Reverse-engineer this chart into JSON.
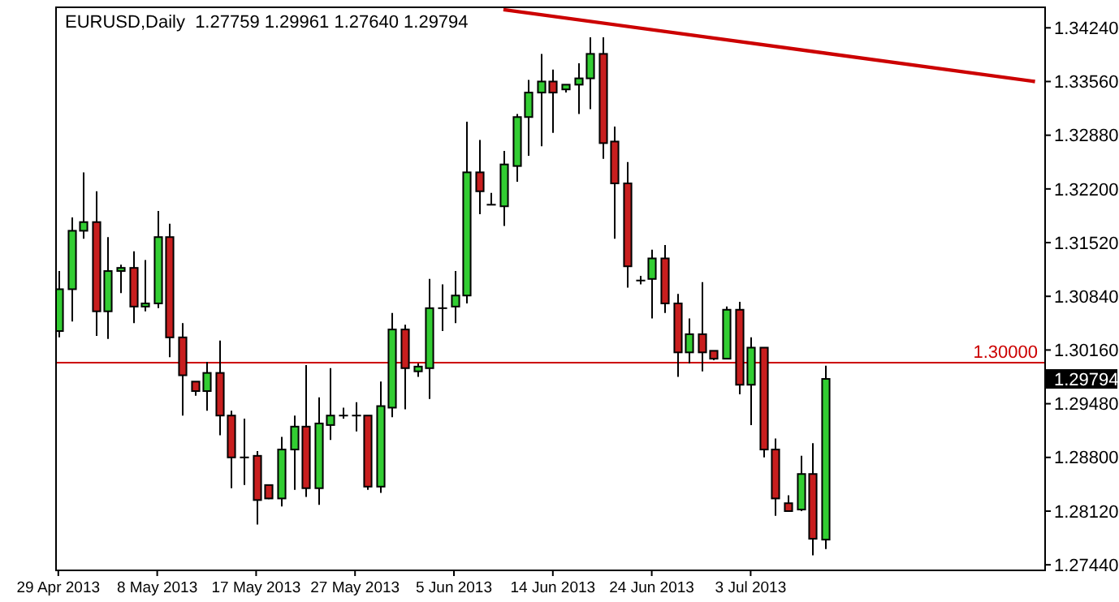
{
  "chart_data": {
    "type": "candlestick",
    "title": "EURUSD,Daily  1.27759 1.29961 1.27640 1.29794",
    "categories": [
      "29 Apr 2013",
      null,
      null,
      null,
      null,
      null,
      null,
      null,
      "8 May 2013",
      null,
      null,
      null,
      null,
      null,
      null,
      null,
      "17 May 2013",
      null,
      null,
      null,
      null,
      null,
      null,
      null,
      "27 May 2013",
      null,
      null,
      null,
      null,
      null,
      null,
      null,
      "5 Jun 2013",
      null,
      null,
      null,
      null,
      null,
      null,
      null,
      "14 Jun 2013",
      null,
      null,
      null,
      null,
      null,
      null,
      null,
      "24 Jun 2013",
      null,
      null,
      null,
      null,
      null,
      null,
      null,
      "3 Jul 2013",
      null,
      null,
      null,
      null,
      null,
      null,
      null,
      null,
      null,
      null,
      null,
      null,
      null,
      null,
      null,
      null,
      null,
      null,
      null,
      null,
      null,
      null,
      null
    ],
    "ohlc": [
      [
        1.304,
        1.3116,
        1.3032,
        1.3093
      ],
      [
        1.3093,
        1.3184,
        1.3052,
        1.3167
      ],
      [
        1.3167,
        1.3241,
        1.3157,
        1.3178
      ],
      [
        1.3178,
        1.3217,
        1.3034,
        1.3065
      ],
      [
        1.3065,
        1.3159,
        1.303,
        1.3116
      ],
      [
        1.3116,
        1.3124,
        1.3088,
        1.312
      ],
      [
        1.312,
        1.3141,
        1.305,
        1.3071
      ],
      [
        1.3071,
        1.313,
        1.3065,
        1.3075
      ],
      [
        1.3075,
        1.3192,
        1.3069,
        1.3159
      ],
      [
        1.3159,
        1.3176,
        1.3007,
        1.3032
      ],
      [
        1.3032,
        1.305,
        1.2933,
        1.2984
      ],
      [
        1.2976,
        1.2976,
        1.2958,
        1.2964
      ],
      [
        1.2964,
        1.3001,
        1.2939,
        1.2987
      ],
      [
        1.2987,
        1.3028,
        1.2908,
        1.2933
      ],
      [
        1.2933,
        1.2939,
        1.2841,
        1.288
      ],
      [
        1.288,
        1.2929,
        1.2845,
        1.288
      ],
      [
        1.2882,
        1.2888,
        1.2795,
        1.2826
      ],
      [
        1.2845,
        1.2845,
        1.2827,
        1.2828
      ],
      [
        1.2828,
        1.2906,
        1.2818,
        1.289
      ],
      [
        1.289,
        1.2933,
        1.2839,
        1.2919
      ],
      [
        1.2919,
        1.2997,
        1.283,
        1.2841
      ],
      [
        1.2841,
        1.2956,
        1.282,
        1.2923
      ],
      [
        1.2921,
        1.2993,
        1.2902,
        1.2933
      ],
      [
        1.2933,
        1.2943,
        1.2929,
        1.2933
      ],
      [
        1.2933,
        1.295,
        1.2913,
        1.2933
      ],
      [
        1.2933,
        1.2933,
        1.2839,
        1.2843
      ],
      [
        1.2843,
        1.2976,
        1.2835,
        1.2945
      ],
      [
        1.2943,
        1.3063,
        1.2931,
        1.3042
      ],
      [
        1.3042,
        1.3048,
        1.2941,
        1.2993
      ],
      [
        1.2989,
        1.2999,
        1.2982,
        1.2995
      ],
      [
        1.2993,
        1.3106,
        1.2954,
        1.3069
      ],
      [
        1.3069,
        1.3099,
        1.304,
        1.3069
      ],
      [
        1.3071,
        1.3116,
        1.305,
        1.3085
      ],
      [
        1.3085,
        1.3305,
        1.3075,
        1.3241
      ],
      [
        1.3241,
        1.3282,
        1.3188,
        1.3217
      ],
      [
        1.32,
        1.3215,
        1.32,
        1.32
      ],
      [
        1.3198,
        1.3268,
        1.3173,
        1.3251
      ],
      [
        1.3249,
        1.3315,
        1.3229,
        1.3311
      ],
      [
        1.3311,
        1.3358,
        1.3262,
        1.3342
      ],
      [
        1.3342,
        1.3391,
        1.3274,
        1.3356
      ],
      [
        1.3356,
        1.3371,
        1.3291,
        1.3342
      ],
      [
        1.3346,
        1.3352,
        1.3342,
        1.3352
      ],
      [
        1.3352,
        1.3379,
        1.3315,
        1.336
      ],
      [
        1.336,
        1.3412,
        1.3321,
        1.3391
      ],
      [
        1.3391,
        1.3412,
        1.3258,
        1.3278
      ],
      [
        1.328,
        1.3299,
        1.3157,
        1.3227
      ],
      [
        1.3227,
        1.3254,
        1.3095,
        1.3122
      ],
      [
        1.3104,
        1.311,
        1.3099,
        1.3104
      ],
      [
        1.3106,
        1.3143,
        1.3056,
        1.3132
      ],
      [
        1.3132,
        1.3149,
        1.3063,
        1.3075
      ],
      [
        1.3075,
        1.3087,
        1.2982,
        1.3013
      ],
      [
        1.3013,
        1.3056,
        1.2999,
        1.3036
      ],
      [
        1.3036,
        1.3102,
        1.2989,
        1.3013
      ],
      [
        1.3015,
        1.3015,
        1.3003,
        1.3005
      ],
      [
        1.3005,
        1.3071,
        1.3005,
        1.3067
      ],
      [
        1.3067,
        1.3077,
        1.296,
        1.2972
      ],
      [
        1.2972,
        1.3032,
        1.2921,
        1.3019
      ],
      [
        1.3019,
        1.3019,
        1.288,
        1.289
      ],
      [
        1.289,
        1.2904,
        1.2806,
        1.2828
      ],
      [
        1.2822,
        1.2832,
        1.2812,
        1.2812
      ],
      [
        1.2814,
        1.2882,
        1.2812,
        1.2859
      ],
      [
        1.2859,
        1.2898,
        1.2756,
        1.2777
      ],
      [
        1.27759,
        1.29961,
        1.2764,
        1.29794
      ],
      null,
      null,
      null,
      null,
      null,
      null,
      null,
      null,
      null,
      null,
      null,
      null,
      null,
      null,
      null,
      null,
      null
    ],
    "colors": [
      "#32cd32",
      "#32cd32",
      "#32cd32",
      "#c81e1e",
      "#32cd32",
      "#32cd32",
      "#c81e1e",
      "#32cd32",
      "#32cd32",
      "#c81e1e",
      "#c81e1e",
      "#c81e1e",
      "#32cd32",
      "#c81e1e",
      "#c81e1e",
      "#000000",
      "#c81e1e",
      "#c81e1e",
      "#32cd32",
      "#32cd32",
      "#c81e1e",
      "#32cd32",
      "#32cd32",
      "#000000",
      "#000000",
      "#c81e1e",
      "#32cd32",
      "#32cd32",
      "#c81e1e",
      "#32cd32",
      "#32cd32",
      "#000000",
      "#32cd32",
      "#32cd32",
      "#c81e1e",
      "#000000",
      "#32cd32",
      "#32cd32",
      "#32cd32",
      "#32cd32",
      "#c81e1e",
      "#32cd32",
      "#32cd32",
      "#32cd32",
      "#c81e1e",
      "#c81e1e",
      "#c81e1e",
      "#000000",
      "#32cd32",
      "#c81e1e",
      "#c81e1e",
      "#32cd32",
      "#c81e1e",
      "#c81e1e",
      "#32cd32",
      "#c81e1e",
      "#32cd32",
      "#c81e1e",
      "#c81e1e",
      "#c81e1e",
      "#32cd32",
      "#c81e1e",
      "#32cd32",
      null,
      null,
      null,
      null,
      null,
      null,
      null,
      null,
      null,
      null,
      null,
      null,
      null,
      null,
      null,
      null,
      null
    ],
    "series": [
      {
        "type": "line",
        "values": [
          null,
          null,
          null,
          null,
          null,
          null,
          null,
          null,
          null,
          null,
          null,
          null,
          null,
          null,
          null,
          null,
          null,
          null,
          null,
          null,
          null,
          null,
          null,
          null,
          null,
          null,
          null,
          null,
          null,
          null,
          null,
          null,
          null,
          null,
          null,
          null,
          1.3447,
          null,
          null,
          null,
          null,
          null,
          null,
          null,
          null,
          null,
          null,
          null,
          null,
          null,
          null,
          null,
          null,
          null,
          null,
          null,
          null,
          null,
          null,
          null,
          null,
          null,
          null,
          null,
          null,
          null,
          null,
          null,
          null,
          null,
          null,
          null,
          null,
          null,
          null,
          null,
          null,
          null,
          null,
          1.3356
        ],
        "color": "#cc0000"
      }
    ],
    "ylim": [
      1.2738,
      1.3451
    ],
    "yticks": [
      {
        "value": 1.2744,
        "label": "1.27440"
      },
      {
        "value": 1.2812,
        "label": "1.28120"
      },
      {
        "value": 1.288,
        "label": "1.28800"
      },
      {
        "value": 1.2948,
        "label": "1.29480"
      },
      {
        "value": 1.3016,
        "label": "1.30160"
      },
      {
        "value": 1.3084,
        "label": "1.30840"
      },
      {
        "value": 1.3152,
        "label": "1.31520"
      },
      {
        "value": 1.322,
        "label": "1.32200"
      },
      {
        "value": 1.3288,
        "label": "1.32880"
      },
      {
        "value": 1.3356,
        "label": "1.33560"
      },
      {
        "value": 1.3424,
        "label": "1.34240"
      }
    ],
    "ref_lines": [
      {
        "axis": "y",
        "value": 1.3,
        "label": "1.30000",
        "color": "#cc0000"
      }
    ],
    "annotations": [
      "1.29794"
    ],
    "grid": false
  }
}
